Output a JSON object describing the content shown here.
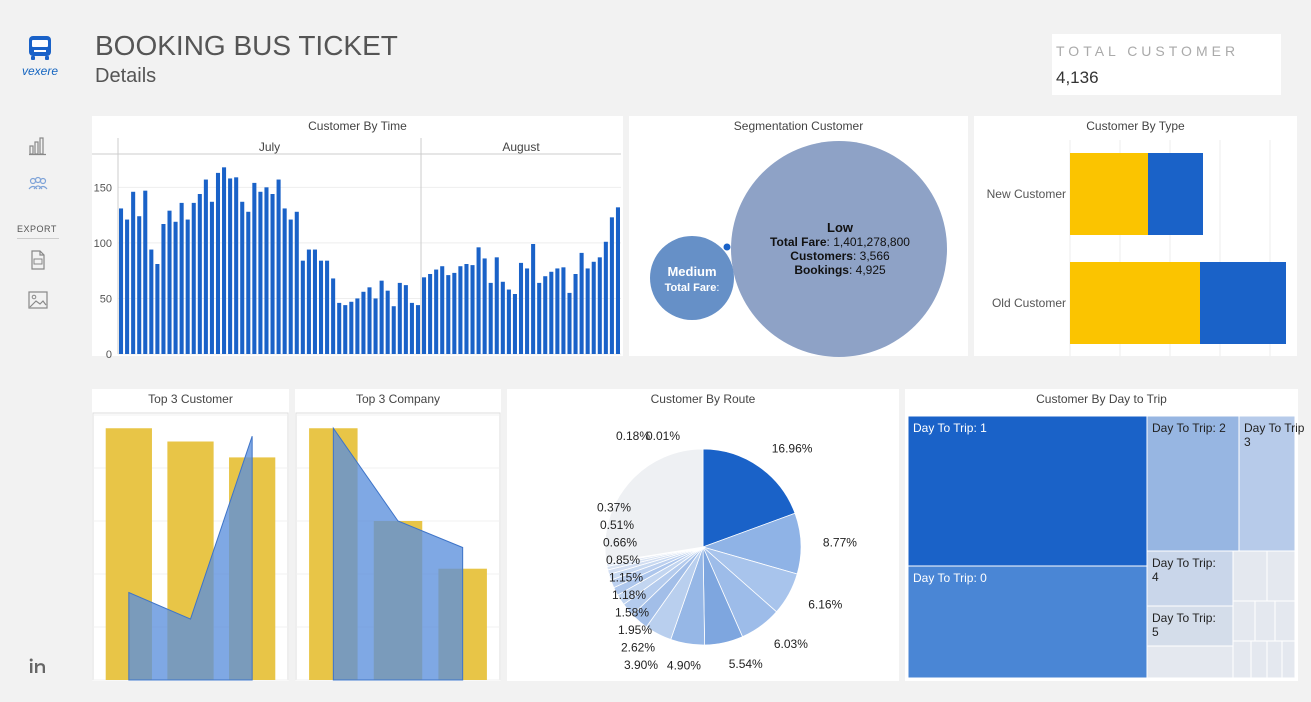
{
  "header": {
    "title": "BOOKING BUS TICKET",
    "subtitle": "Details",
    "logo_text": "vexere"
  },
  "sidebar": {
    "items": [
      {
        "icon": "bar-chart-icon"
      },
      {
        "icon": "users-icon"
      }
    ],
    "export_label": "EXPORT",
    "export_items": [
      {
        "icon": "pdf-file-icon"
      },
      {
        "icon": "image-icon"
      }
    ],
    "footer_icon": "linkedin-icon"
  },
  "kpi": {
    "label": "TOTAL CUSTOMER",
    "value": "4,136"
  },
  "colors": {
    "blue": "#1a62c8",
    "yellow": "#fbc400",
    "mid_blue": "#4a86d5",
    "bubble_low": "#8ea2c6",
    "bubble_medium": "#6690c7",
    "muted_yellow": "#e8c547",
    "overlay": "#5b8fdc"
  },
  "chart_data": [
    {
      "type": "bar",
      "title": "Customer By Time",
      "panes": [
        {
          "label": "July",
          "values": [
            131,
            121,
            146,
            124,
            147,
            94,
            81,
            117,
            129,
            119,
            136,
            121,
            136,
            144,
            157,
            137,
            163,
            168,
            158,
            159,
            137,
            128,
            154,
            146,
            150,
            144,
            157,
            131,
            121,
            128,
            84,
            94,
            94,
            84,
            84,
            68,
            46,
            44,
            47,
            50,
            56,
            60,
            50,
            66,
            57,
            43,
            64,
            62,
            46,
            44
          ]
        },
        {
          "label": "August",
          "values": [
            69,
            72,
            76,
            79,
            71,
            73,
            79,
            81,
            80,
            96,
            86,
            64,
            87,
            65,
            58,
            54,
            82,
            77,
            99,
            64,
            70,
            74,
            77,
            78,
            55,
            72,
            91,
            77,
            83,
            87,
            101,
            123,
            132
          ]
        }
      ],
      "y_ticks": [
        0,
        50,
        100,
        150
      ],
      "ylim": [
        0,
        180
      ]
    },
    {
      "type": "bubble",
      "title": "Segmentation Customer",
      "bubbles": [
        {
          "name": "Low",
          "lines": [
            {
              "label": "Total Fare",
              "value": "1,401,278,800"
            },
            {
              "label": "Customers",
              "value": "3,566"
            },
            {
              "label": "Bookings",
              "value": "4,925"
            }
          ]
        },
        {
          "name": "Medium",
          "lines": [
            {
              "label": "Total Fare",
              "value": ""
            }
          ]
        }
      ]
    },
    {
      "type": "bar",
      "title": "Customer By Type",
      "orientation": "horizontal",
      "stacked": true,
      "categories": [
        "New Customer",
        "Old Customer"
      ],
      "series": [
        {
          "color": "#fbc400",
          "values": [
            78,
            130
          ]
        },
        {
          "color": "#1a62c8",
          "values": [
            55,
            86
          ]
        }
      ],
      "xlim": [
        0,
        220
      ]
    },
    {
      "type": "bar",
      "title": "Top 3 Customer",
      "series": [
        {
          "type": "bar",
          "values": [
            95,
            90,
            84
          ]
        },
        {
          "type": "area",
          "values": [
            33,
            23,
            92
          ]
        }
      ],
      "ylim": [
        0,
        100
      ]
    },
    {
      "type": "bar",
      "title": "Top 3 Company",
      "series": [
        {
          "type": "bar",
          "values": [
            95,
            60,
            42
          ]
        },
        {
          "type": "area",
          "values": [
            95,
            60,
            50
          ]
        }
      ],
      "ylim": [
        0,
        100
      ]
    },
    {
      "type": "pie",
      "title": "Customer By Route",
      "slices": [
        16.96,
        8.77,
        6.16,
        6.03,
        5.54,
        4.9,
        3.9,
        2.62,
        1.95,
        1.58,
        1.18,
        1.15,
        0.85,
        0.66,
        0.51,
        0.37,
        0.18,
        0.01
      ],
      "labels": [
        "16.96%",
        "8.77%",
        "6.16%",
        "6.03%",
        "5.54%",
        "4.90%",
        "3.90%",
        "2.62%",
        "1.95%",
        "1.58%",
        "1.18%",
        "1.15%",
        "0.85%",
        "0.66%",
        "0.51%",
        "0.37%",
        "0.18%",
        "0.01%"
      ]
    },
    {
      "type": "treemap",
      "title": "Customer By Day to Trip",
      "tiles": [
        {
          "label": "Day To Trip: 1",
          "color": "#1a62c8"
        },
        {
          "label": "Day To Trip: 0",
          "color": "#4a86d5"
        },
        {
          "label": "Day To Trip: 2",
          "color": "#97b6e2"
        },
        {
          "label": "Day To Trip: 3",
          "color": "#b7cbea"
        },
        {
          "label": "Day To Trip: 4",
          "color": "#c9d6ea"
        },
        {
          "label": "Day To Trip: 5",
          "color": "#d4ddea"
        }
      ]
    }
  ]
}
